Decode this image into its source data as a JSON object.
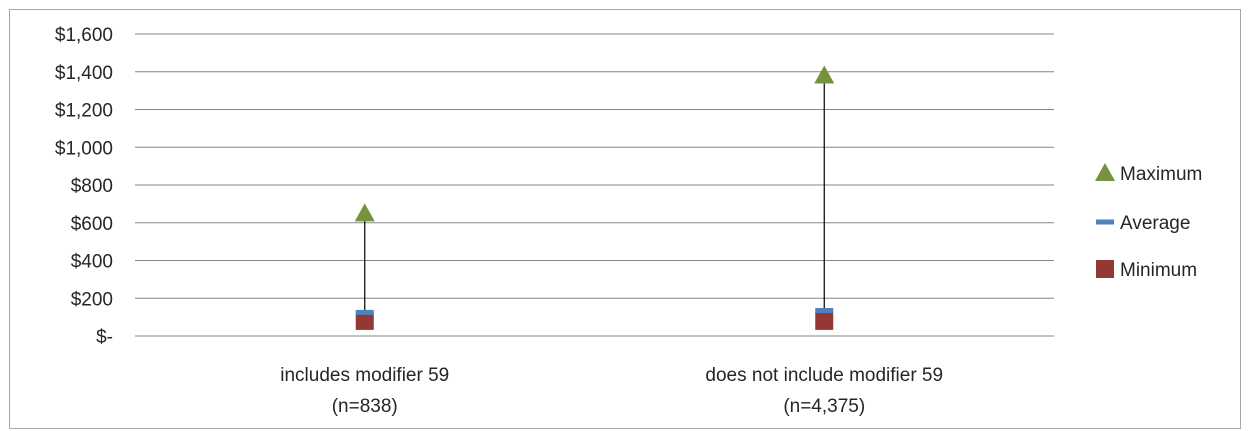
{
  "chart_data": {
    "type": "high-low-average",
    "title": "",
    "xlabel": "",
    "ylabel": "",
    "ylim": [
      0,
      1600
    ],
    "y_ticks": [
      {
        "value": 0,
        "label": "$-"
      },
      {
        "value": 200,
        "label": "$200"
      },
      {
        "value": 400,
        "label": "$400"
      },
      {
        "value": 600,
        "label": "$600"
      },
      {
        "value": 800,
        "label": "$800"
      },
      {
        "value": 1000,
        "label": "$1,000"
      },
      {
        "value": 1200,
        "label": "$1,200"
      },
      {
        "value": 1400,
        "label": "$1,400"
      },
      {
        "value": 1600,
        "label": "$1,600"
      }
    ],
    "grid": true,
    "legend_position": "right",
    "categories": [
      {
        "line1": "includes modifier 59",
        "line2": "(n=838)"
      },
      {
        "line1": "does not include modifier 59",
        "line2": "(n=4,375)"
      }
    ],
    "series": [
      {
        "name": "Maximum",
        "marker": "triangle",
        "color": "#76923c",
        "values": [
          650,
          1380
        ]
      },
      {
        "name": "Average",
        "marker": "dash",
        "color": "#4f81bd",
        "values": [
          125,
          135
        ]
      },
      {
        "name": "Minimum",
        "marker": "square",
        "color": "#953735",
        "values": [
          80,
          80
        ]
      }
    ],
    "colors": {
      "grid": "#868686",
      "hiLoLine": "#000000",
      "text": "#262626"
    }
  }
}
